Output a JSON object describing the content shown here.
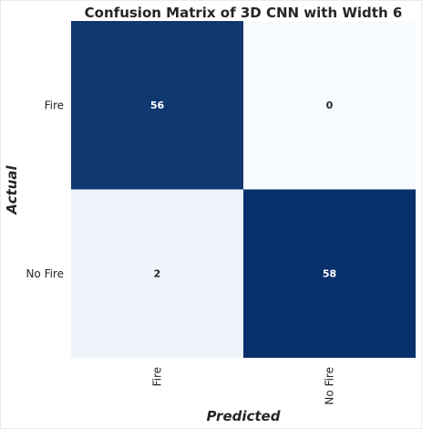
{
  "chart_data": {
    "type": "heatmap",
    "title": "Confusion Matrix of 3D CNN with Width 6",
    "xlabel": "Predicted",
    "ylabel": "Actual",
    "x_categories": [
      "Fire",
      "No Fire"
    ],
    "y_categories": [
      "Fire",
      "No Fire"
    ],
    "values": [
      [
        56,
        0
      ],
      [
        2,
        58
      ]
    ],
    "colormap": "Blues",
    "colors": {
      "low": "#f7fbff",
      "high": "#08306b",
      "text_on_dark": "#ffffff",
      "text_on_light": "#262626"
    },
    "grid": false,
    "legend": "none"
  }
}
